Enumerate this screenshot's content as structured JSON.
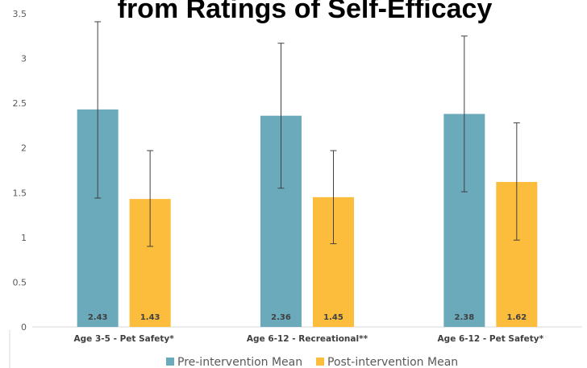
{
  "chart_data": {
    "type": "bar",
    "title": "from Ratings of Self-Efficacy",
    "categories": [
      "Age 3-5 - Pet Safety*",
      "Age 6-12 - Recreational**",
      "Age 6-12 - Pet Safety*"
    ],
    "series": [
      {
        "name": "Pre-intervention Mean",
        "color": "#6aaabb",
        "values": [
          2.43,
          2.36,
          2.38
        ],
        "labels": [
          "2.43",
          "2.36",
          "2.38"
        ],
        "error_low": [
          1.44,
          1.55,
          1.51
        ],
        "error_high": [
          3.41,
          3.17,
          3.25
        ]
      },
      {
        "name": "Post-intervention Mean",
        "color": "#fbbd3b",
        "values": [
          1.43,
          1.45,
          1.62
        ],
        "labels": [
          "1.43",
          "1.45",
          "1.62"
        ],
        "error_low": [
          0.9,
          0.93,
          0.97
        ],
        "error_high": [
          1.97,
          1.97,
          2.28
        ]
      }
    ],
    "y_ticks": [
      "0",
      "0.5",
      "1",
      "1.5",
      "2",
      "2.5",
      "3",
      "3.5"
    ],
    "ylim": [
      0,
      3.5
    ],
    "grid": false,
    "legend_position": "bottom",
    "xlabel": "",
    "ylabel": ""
  }
}
